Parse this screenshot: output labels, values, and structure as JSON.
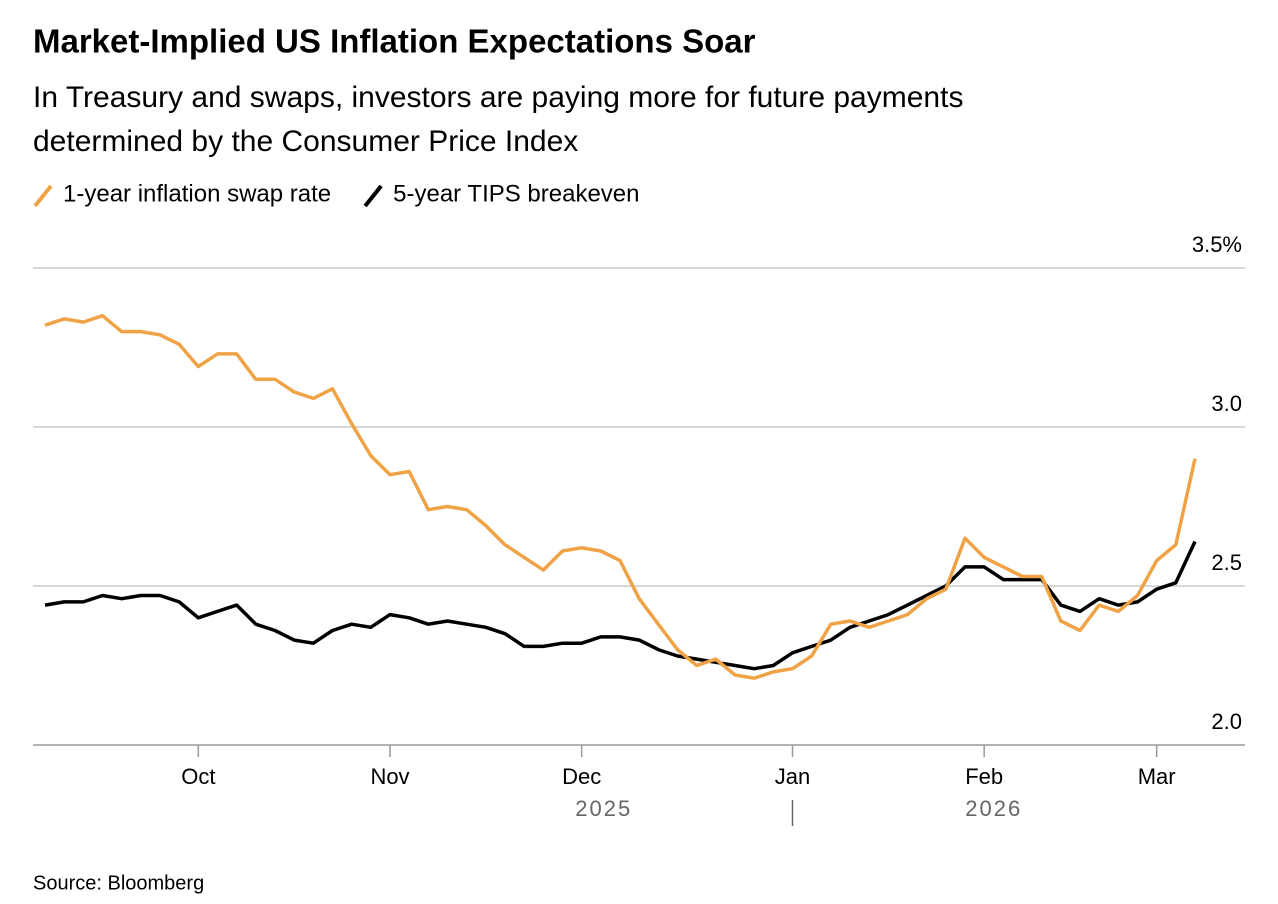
{
  "chart_data": {
    "type": "line",
    "title": "Market-Implied US Inflation Expectations Soar",
    "subtitle": [
      "In Treasury and swaps, investors are paying more for future payments",
      "determined by the Consumer Price Index"
    ],
    "source": "Source: Bloomberg",
    "categories": [
      null,
      null,
      null,
      null,
      null,
      null,
      null,
      null,
      "Oct",
      null,
      null,
      null,
      null,
      null,
      null,
      null,
      null,
      null,
      "Nov",
      null,
      null,
      null,
      null,
      null,
      null,
      null,
      null,
      null,
      "Dec",
      null,
      null,
      null,
      null,
      null,
      null,
      null,
      null,
      null,
      null,
      "Jan",
      null,
      null,
      null,
      null,
      null,
      null,
      null,
      null,
      null,
      "Feb",
      null,
      null,
      null,
      null,
      null,
      null,
      null,
      null,
      "Mar",
      null,
      null
    ],
    "years": [
      "2025",
      "2026"
    ],
    "series": [
      {
        "name": "1-year inflation swap rate",
        "color": "#f0a346",
        "values": [
          3.32,
          3.34,
          3.33,
          3.35,
          3.3,
          3.3,
          3.29,
          3.26,
          3.19,
          3.23,
          3.23,
          3.15,
          3.15,
          3.11,
          3.09,
          3.12,
          3.01,
          2.91,
          2.85,
          2.86,
          2.74,
          2.75,
          2.74,
          2.69,
          2.63,
          2.59,
          2.55,
          2.61,
          2.62,
          2.61,
          2.58,
          2.46,
          2.38,
          2.3,
          2.25,
          2.27,
          2.22,
          2.21,
          2.23,
          2.24,
          2.28,
          2.38,
          2.39,
          2.37,
          2.39,
          2.41,
          2.46,
          2.49,
          2.65,
          2.59,
          2.56,
          2.53,
          2.53,
          2.39,
          2.36,
          2.44,
          2.42,
          2.47,
          2.58,
          2.63,
          2.9
        ]
      },
      {
        "name": "5-year TIPS breakeven",
        "color": "#000000",
        "values": [
          2.44,
          2.45,
          2.45,
          2.47,
          2.46,
          2.47,
          2.47,
          2.45,
          2.4,
          2.42,
          2.44,
          2.38,
          2.36,
          2.33,
          2.32,
          2.36,
          2.38,
          2.37,
          2.41,
          2.4,
          2.38,
          2.39,
          2.38,
          2.37,
          2.35,
          2.31,
          2.31,
          2.32,
          2.32,
          2.34,
          2.34,
          2.33,
          2.3,
          2.28,
          2.27,
          2.26,
          2.25,
          2.24,
          2.25,
          2.29,
          2.31,
          2.33,
          2.37,
          2.39,
          2.41,
          2.44,
          2.47,
          2.5,
          2.56,
          2.56,
          2.52,
          2.52,
          2.52,
          2.44,
          2.42,
          2.46,
          2.44,
          2.45,
          2.49,
          2.51,
          2.64
        ]
      }
    ],
    "ylim": [
      2.0,
      3.5
    ],
    "yticks": [
      {
        "value": 2.0,
        "label": "2.0"
      },
      2.5,
      {
        "value": 3.0,
        "label": "3.0"
      },
      {
        "value": 3.5,
        "label": "3.5%"
      }
    ],
    "grid": true
  }
}
